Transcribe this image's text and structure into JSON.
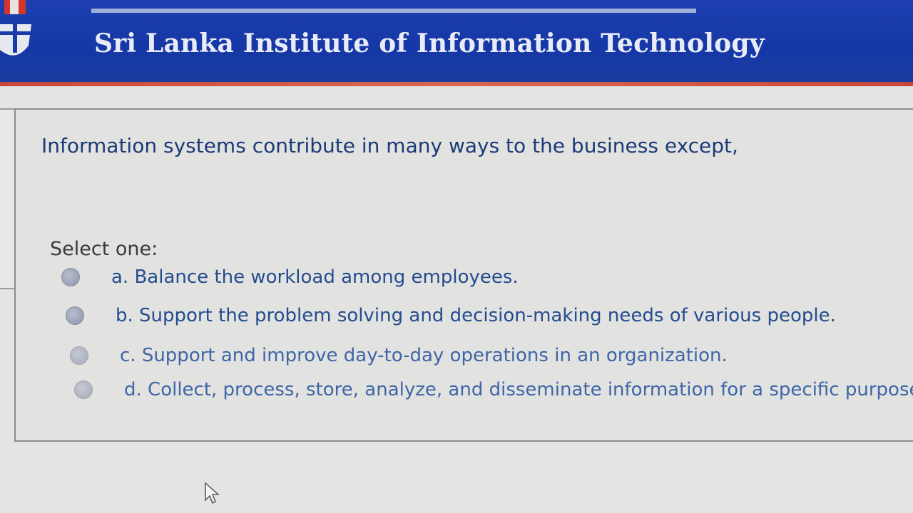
{
  "header": {
    "title": "Sri Lanka Institute of Information Technology",
    "brand_color": "#1a3ca8",
    "accent_color": "#c9463a"
  },
  "question": {
    "text": "Information systems contribute in many ways to the business except,",
    "prompt": "Select one:",
    "options": [
      {
        "label": "a. Balance the workload among employees.",
        "selected": false
      },
      {
        "label": "b. Support the problem solving and decision-making needs of various people.",
        "selected": false
      },
      {
        "label": "c. Support and improve day-to-day operations in an organization.",
        "selected": false
      },
      {
        "label": "d. Collect, process, store, analyze, and disseminate information for a specific purpose.",
        "selected": false
      }
    ]
  },
  "icons": {
    "logo": "institute-logo-icon",
    "cursor": "mouse-pointer-icon"
  }
}
